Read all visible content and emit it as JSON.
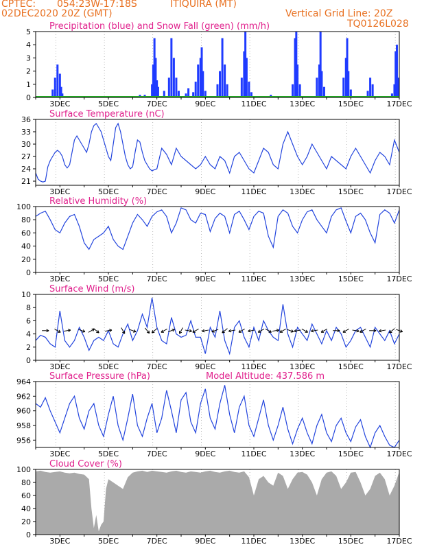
{
  "header": {
    "source": "CPTEC:",
    "location": "054:23W-17:18S",
    "station": "ITIQUIRA (MT)",
    "init": "02DEC2020 20Z (GMT)",
    "grid_note": "Vertical Grid Line: 20Z",
    "code": "TQ0126L028"
  },
  "colors": {
    "header": "#e87020",
    "title": "#e0208c",
    "line": "#2244dd",
    "precip": "#1f3bff",
    "snow": "#22aa22",
    "cloud": "#aaaaaa",
    "grid": "#888888"
  },
  "x_ticks": [
    "3DEC",
    "5DEC",
    "7DEC",
    "9DEC",
    "11DEC",
    "13DEC",
    "15DEC",
    "17DEC"
  ],
  "chart_data": [
    {
      "type": "bar",
      "title": "Precipitation (blue) and Snow Fall (green) (mm/h)",
      "ylim": [
        0,
        5
      ],
      "yticks": [
        "0",
        "1",
        "2",
        "3",
        "4",
        "5"
      ],
      "series": [
        {
          "name": "Precipitation",
          "values": [
            [
              2.7,
              0.6
            ],
            [
              2.8,
              1.5
            ],
            [
              2.9,
              2.5
            ],
            [
              3.0,
              1.8
            ],
            [
              3.05,
              0.8
            ],
            [
              3.1,
              0.3
            ],
            [
              6.3,
              0.2
            ],
            [
              6.5,
              0.2
            ],
            [
              6.8,
              1.0
            ],
            [
              6.85,
              2.5
            ],
            [
              6.9,
              4.5
            ],
            [
              6.95,
              3.0
            ],
            [
              7.0,
              1.3
            ],
            [
              7.05,
              0.8
            ],
            [
              7.3,
              0.5
            ],
            [
              7.5,
              1.5
            ],
            [
              7.6,
              4.5
            ],
            [
              7.7,
              3.0
            ],
            [
              7.8,
              1.5
            ],
            [
              7.9,
              0.5
            ],
            [
              8.2,
              0.3
            ],
            [
              8.3,
              0.7
            ],
            [
              8.5,
              0.4
            ],
            [
              8.6,
              1.2
            ],
            [
              8.7,
              2.5
            ],
            [
              8.8,
              3.0
            ],
            [
              8.85,
              3.8
            ],
            [
              8.9,
              2.0
            ],
            [
              9.0,
              0.5
            ],
            [
              9.5,
              1.0
            ],
            [
              9.6,
              2.0
            ],
            [
              9.7,
              4.5
            ],
            [
              9.8,
              2.5
            ],
            [
              9.9,
              1.0
            ],
            [
              10.5,
              1.5
            ],
            [
              10.6,
              3.5
            ],
            [
              10.65,
              5.0
            ],
            [
              10.7,
              3.0
            ],
            [
              10.8,
              1.2
            ],
            [
              10.9,
              0.4
            ],
            [
              11.7,
              0.2
            ],
            [
              12.6,
              1.0
            ],
            [
              12.7,
              4.5
            ],
            [
              12.75,
              5.0
            ],
            [
              12.8,
              2.5
            ],
            [
              12.9,
              1.0
            ],
            [
              13.6,
              1.5
            ],
            [
              13.7,
              2.5
            ],
            [
              13.75,
              5.0
            ],
            [
              13.8,
              2.0
            ],
            [
              13.9,
              0.8
            ],
            [
              14.7,
              1.5
            ],
            [
              14.8,
              3.0
            ],
            [
              14.85,
              4.5
            ],
            [
              14.9,
              2.0
            ],
            [
              15.0,
              0.6
            ],
            [
              15.7,
              0.5
            ],
            [
              15.8,
              1.5
            ],
            [
              15.9,
              1.0
            ],
            [
              16.7,
              0.3
            ],
            [
              16.8,
              1.0
            ],
            [
              16.85,
              3.5
            ],
            [
              16.9,
              4.0
            ],
            [
              16.95,
              1.5
            ]
          ]
        },
        {
          "name": "Snow Fall",
          "values": [
            [
              2.0,
              0
            ],
            [
              17.0,
              0
            ]
          ]
        }
      ]
    },
    {
      "type": "line",
      "title": "Surface Temperature (nC)",
      "ylim": [
        20,
        36
      ],
      "yticks": [
        "21",
        "24",
        "27",
        "30",
        "33",
        "36"
      ],
      "x": [
        2.0,
        2.1,
        2.2,
        2.3,
        2.4,
        2.5,
        2.6,
        2.7,
        2.8,
        2.9,
        3.0,
        3.1,
        3.2,
        3.3,
        3.4,
        3.5,
        3.6,
        3.7,
        3.8,
        3.9,
        4.0,
        4.1,
        4.2,
        4.3,
        4.4,
        4.5,
        4.6,
        4.7,
        4.8,
        4.9,
        5.0,
        5.1,
        5.2,
        5.3,
        5.4,
        5.5,
        5.6,
        5.7,
        5.8,
        5.9,
        6.0,
        6.1,
        6.2,
        6.3,
        6.4,
        6.5,
        6.6,
        6.7,
        6.8,
        6.9,
        7.0,
        7.2,
        7.4,
        7.6,
        7.8,
        8.0,
        8.2,
        8.4,
        8.6,
        8.8,
        9.0,
        9.2,
        9.4,
        9.6,
        9.8,
        10.0,
        10.2,
        10.4,
        10.6,
        10.8,
        11.0,
        11.2,
        11.4,
        11.6,
        11.8,
        12.0,
        12.2,
        12.4,
        12.6,
        12.8,
        13.0,
        13.2,
        13.4,
        13.6,
        13.8,
        14.0,
        14.2,
        14.4,
        14.6,
        14.8,
        15.0,
        15.2,
        15.4,
        15.6,
        15.8,
        16.0,
        16.2,
        16.4,
        16.6,
        16.8,
        17.0
      ],
      "y": [
        23.0,
        21.5,
        21.0,
        20.8,
        21.0,
        24.5,
        26.0,
        27.0,
        28.0,
        28.5,
        28.0,
        27.0,
        25.0,
        24.2,
        25.0,
        28.0,
        31.0,
        32.0,
        31.0,
        30.0,
        29.0,
        28.0,
        30.0,
        33.0,
        34.5,
        35.0,
        34.0,
        33.0,
        31.0,
        29.0,
        27.0,
        26.0,
        30.0,
        34.0,
        35.0,
        33.0,
        30.0,
        27.0,
        25.0,
        24.0,
        24.5,
        28.0,
        31.0,
        30.5,
        28.0,
        26.0,
        25.0,
        24.0,
        23.5,
        23.8,
        24.0,
        29.0,
        27.5,
        25.0,
        29.0,
        27.0,
        26.0,
        25.0,
        24.0,
        25.0,
        27.0,
        25.0,
        24.0,
        27.0,
        26.0,
        23.0,
        27.0,
        28.0,
        26.0,
        24.0,
        23.0,
        26.0,
        29.0,
        28.0,
        25.0,
        24.0,
        30.0,
        33.0,
        30.0,
        27.0,
        25.0,
        27.0,
        30.0,
        28.0,
        26.0,
        24.0,
        27.0,
        26.0,
        25.0,
        24.0,
        27.0,
        29.0,
        27.0,
        25.0,
        23.0,
        26.0,
        28.0,
        27.0,
        25.0,
        31.0,
        28.0
      ]
    },
    {
      "type": "line",
      "title": "Relative Humidity (%)",
      "ylim": [
        0,
        100
      ],
      "yticks": [
        "0",
        "20",
        "40",
        "60",
        "80",
        "100"
      ],
      "x": [
        2.0,
        2.2,
        2.4,
        2.6,
        2.8,
        3.0,
        3.2,
        3.4,
        3.6,
        3.8,
        4.0,
        4.2,
        4.4,
        4.6,
        4.8,
        5.0,
        5.2,
        5.4,
        5.6,
        5.8,
        6.0,
        6.2,
        6.4,
        6.6,
        6.8,
        7.0,
        7.2,
        7.4,
        7.6,
        7.8,
        8.0,
        8.2,
        8.4,
        8.6,
        8.8,
        9.0,
        9.2,
        9.4,
        9.6,
        9.8,
        10.0,
        10.2,
        10.4,
        10.6,
        10.8,
        11.0,
        11.2,
        11.4,
        11.6,
        11.8,
        12.0,
        12.2,
        12.4,
        12.6,
        12.8,
        13.0,
        13.2,
        13.4,
        13.6,
        13.8,
        14.0,
        14.2,
        14.4,
        14.6,
        14.8,
        15.0,
        15.2,
        15.4,
        15.6,
        15.8,
        16.0,
        16.2,
        16.4,
        16.6,
        16.8,
        17.0
      ],
      "y": [
        85,
        90,
        93,
        80,
        65,
        60,
        75,
        85,
        88,
        70,
        45,
        35,
        50,
        55,
        60,
        70,
        50,
        40,
        35,
        55,
        75,
        88,
        80,
        70,
        85,
        92,
        95,
        85,
        60,
        75,
        98,
        95,
        80,
        75,
        90,
        88,
        62,
        82,
        90,
        85,
        60,
        88,
        93,
        80,
        65,
        85,
        93,
        90,
        55,
        38,
        85,
        95,
        90,
        70,
        60,
        80,
        92,
        95,
        80,
        70,
        60,
        85,
        95,
        98,
        78,
        60,
        85,
        90,
        80,
        60,
        45,
        88,
        95,
        90,
        75,
        95
      ]
    },
    {
      "type": "line",
      "title": "Surface Wind (m/s)",
      "ylim": [
        0,
        10
      ],
      "yticks": [
        "0",
        "2",
        "4",
        "6",
        "8",
        "10"
      ],
      "x": [
        2.0,
        2.2,
        2.4,
        2.6,
        2.8,
        3.0,
        3.2,
        3.4,
        3.6,
        3.8,
        4.0,
        4.2,
        4.4,
        4.6,
        4.8,
        5.0,
        5.2,
        5.4,
        5.6,
        5.8,
        6.0,
        6.2,
        6.4,
        6.6,
        6.8,
        7.0,
        7.2,
        7.4,
        7.6,
        7.8,
        8.0,
        8.2,
        8.4,
        8.6,
        8.8,
        9.0,
        9.2,
        9.4,
        9.6,
        9.8,
        10.0,
        10.2,
        10.4,
        10.6,
        10.8,
        11.0,
        11.2,
        11.4,
        11.6,
        11.8,
        12.0,
        12.2,
        12.4,
        12.6,
        12.8,
        13.0,
        13.2,
        13.4,
        13.6,
        13.8,
        14.0,
        14.2,
        14.4,
        14.6,
        14.8,
        15.0,
        15.2,
        15.4,
        15.6,
        15.8,
        16.0,
        16.2,
        16.4,
        16.6,
        16.8,
        17.0
      ],
      "y": [
        3.0,
        3.8,
        3.5,
        2.5,
        2.0,
        7.5,
        3.0,
        2.0,
        3.0,
        5.0,
        3.5,
        1.5,
        3.0,
        3.5,
        3.0,
        4.5,
        2.5,
        2.0,
        4.0,
        5.5,
        3.0,
        4.5,
        7.0,
        5.0,
        9.5,
        5.0,
        3.0,
        2.5,
        6.5,
        4.0,
        3.5,
        3.8,
        6.0,
        3.5,
        3.5,
        1.0,
        5.0,
        3.5,
        7.5,
        3.0,
        1.0,
        5.0,
        6.0,
        3.5,
        2.0,
        5.0,
        3.0,
        6.0,
        4.5,
        3.5,
        3.0,
        8.5,
        4.0,
        2.0,
        5.0,
        4.0,
        3.0,
        5.5,
        4.0,
        2.5,
        4.5,
        3.0,
        5.0,
        4.0,
        2.0,
        3.0,
        4.5,
        5.0,
        3.5,
        2.0,
        5.0,
        4.0,
        3.0,
        4.5,
        2.5,
        4.0
      ],
      "arrows": [
        [
          2.4,
          0
        ],
        [
          2.9,
          -30
        ],
        [
          3.3,
          10
        ],
        [
          3.9,
          -20
        ],
        [
          4.3,
          30
        ],
        [
          4.5,
          -40
        ],
        [
          5.0,
          10
        ],
        [
          5.6,
          -60
        ],
        [
          6.0,
          -20
        ],
        [
          6.6,
          -50
        ],
        [
          6.9,
          -140
        ],
        [
          7.3,
          -150
        ],
        [
          7.6,
          20
        ],
        [
          8.0,
          -120
        ],
        [
          8.3,
          -10
        ],
        [
          8.6,
          -150
        ],
        [
          9.0,
          -170
        ],
        [
          9.4,
          -160
        ],
        [
          9.8,
          -140
        ],
        [
          10.1,
          -170
        ],
        [
          10.5,
          -150
        ],
        [
          10.9,
          -170
        ],
        [
          11.3,
          -150
        ],
        [
          11.6,
          -30
        ],
        [
          11.9,
          10
        ],
        [
          12.2,
          -150
        ],
        [
          12.5,
          -20
        ],
        [
          12.8,
          -170
        ],
        [
          13.1,
          -30
        ],
        [
          13.5,
          -170
        ],
        [
          13.9,
          -150
        ],
        [
          14.4,
          0
        ],
        [
          14.8,
          -150
        ],
        [
          15.2,
          -10
        ],
        [
          15.5,
          -150
        ],
        [
          15.9,
          0
        ],
        [
          16.3,
          -170
        ],
        [
          16.7,
          -140
        ],
        [
          17.0,
          -20
        ]
      ]
    },
    {
      "type": "line",
      "title": "Surface Pressure (hPa)",
      "subtitle": "Model Altitude: 437.586 m",
      "ylim": [
        955,
        964
      ],
      "yticks": [
        "956",
        "958",
        "960",
        "962",
        "964"
      ],
      "x": [
        2.0,
        2.2,
        2.4,
        2.6,
        2.8,
        3.0,
        3.2,
        3.4,
        3.6,
        3.8,
        4.0,
        4.2,
        4.4,
        4.6,
        4.8,
        5.0,
        5.2,
        5.4,
        5.6,
        5.8,
        6.0,
        6.2,
        6.4,
        6.6,
        6.8,
        7.0,
        7.2,
        7.4,
        7.6,
        7.8,
        8.0,
        8.2,
        8.4,
        8.6,
        8.8,
        9.0,
        9.2,
        9.4,
        9.6,
        9.8,
        10.0,
        10.2,
        10.4,
        10.6,
        10.8,
        11.0,
        11.2,
        11.4,
        11.6,
        11.8,
        12.0,
        12.2,
        12.4,
        12.6,
        12.8,
        13.0,
        13.2,
        13.4,
        13.6,
        13.8,
        14.0,
        14.2,
        14.4,
        14.6,
        14.8,
        15.0,
        15.2,
        15.4,
        15.6,
        15.8,
        16.0,
        16.2,
        16.4,
        16.6,
        16.8,
        17.0
      ],
      "y": [
        961.0,
        960.5,
        961.8,
        960.0,
        958.5,
        957.0,
        959.0,
        961.0,
        962.0,
        959.0,
        957.5,
        960.0,
        961.0,
        958.0,
        956.5,
        959.5,
        962.0,
        958.0,
        956.0,
        959.0,
        962.3,
        958.0,
        956.5,
        959.0,
        961.0,
        957.0,
        959.0,
        962.8,
        960.0,
        957.0,
        961.5,
        962.5,
        958.5,
        957.0,
        961.0,
        963.0,
        959.0,
        957.5,
        961.0,
        963.5,
        959.5,
        957.0,
        960.5,
        962.0,
        958.0,
        956.5,
        959.0,
        961.5,
        958.0,
        956.0,
        958.0,
        960.5,
        957.5,
        955.5,
        957.5,
        959.0,
        957.0,
        955.5,
        958.0,
        959.5,
        957.0,
        955.8,
        958.0,
        959.0,
        957.0,
        955.8,
        957.8,
        958.8,
        956.5,
        955.0,
        957.0,
        958.0,
        956.5,
        955.3,
        955.0,
        956.0
      ]
    },
    {
      "type": "area",
      "title": "Cloud Cover (%)",
      "ylim": [
        0,
        100
      ],
      "yticks": [
        "0",
        "20",
        "40",
        "60",
        "80",
        "100"
      ],
      "x": [
        2.0,
        2.2,
        2.4,
        2.6,
        2.8,
        3.0,
        3.2,
        3.4,
        3.6,
        3.8,
        4.0,
        4.2,
        4.3,
        4.4,
        4.5,
        4.6,
        4.7,
        4.8,
        4.9,
        5.0,
        5.2,
        5.4,
        5.6,
        5.8,
        6.0,
        6.2,
        6.4,
        6.6,
        6.8,
        7.0,
        7.2,
        7.4,
        7.6,
        7.8,
        8.0,
        8.2,
        8.4,
        8.6,
        8.8,
        9.0,
        9.2,
        9.4,
        9.6,
        9.8,
        10.0,
        10.2,
        10.4,
        10.6,
        10.8,
        11.0,
        11.2,
        11.4,
        11.6,
        11.8,
        12.0,
        12.2,
        12.4,
        12.6,
        12.8,
        13.0,
        13.2,
        13.4,
        13.6,
        13.8,
        14.0,
        14.2,
        14.4,
        14.6,
        14.8,
        15.0,
        15.2,
        15.4,
        15.6,
        15.8,
        16.0,
        16.2,
        16.4,
        16.6,
        16.8,
        17.0
      ],
      "y": [
        97,
        98,
        96,
        95,
        96,
        97,
        95,
        94,
        95,
        93,
        92,
        85,
        40,
        10,
        30,
        5,
        15,
        20,
        70,
        85,
        80,
        75,
        70,
        88,
        95,
        97,
        98,
        96,
        98,
        97,
        96,
        95,
        97,
        98,
        96,
        95,
        97,
        96,
        95,
        97,
        98,
        96,
        95,
        97,
        98,
        96,
        95,
        97,
        88,
        60,
        85,
        90,
        80,
        75,
        95,
        90,
        70,
        85,
        95,
        96,
        92,
        80,
        60,
        85,
        95,
        97,
        90,
        70,
        80,
        95,
        96,
        80,
        60,
        70,
        90,
        95,
        85,
        60,
        75,
        96
      ]
    }
  ]
}
